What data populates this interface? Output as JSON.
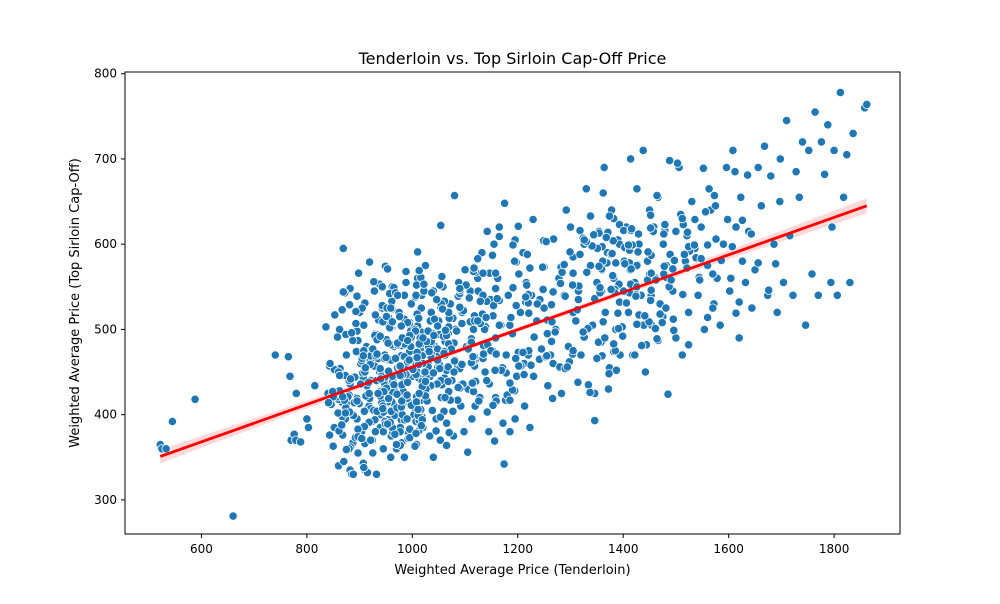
{
  "chart_data": {
    "type": "scatter",
    "title": "Tenderloin vs. Top Sirloin Cap-Off Price",
    "xlabel": "Weighted Average Price (Tenderloin)",
    "ylabel": "Weighted Average Price (Top Sirloin Cap-Off)",
    "xlim": [
      455,
      1925
    ],
    "ylim": [
      260,
      802
    ],
    "xticks": [
      600,
      800,
      1000,
      1200,
      1400,
      1600,
      1800
    ],
    "yticks": [
      300,
      400,
      500,
      600,
      700,
      800
    ],
    "grid": false,
    "legend": "none",
    "point_color": "#1f77b4",
    "regression": {
      "color": "#ff0000",
      "band_color": "#ff0000",
      "x_start": 522,
      "y_start": 351,
      "x_end": 1862,
      "y_end": 645,
      "band_halfwidth_start": 8,
      "band_halfwidth_mid": 3,
      "band_halfwidth_end": 9
    },
    "n_points": 1000,
    "points_note": "Scatter of ~1000 price pairs; dense cluster near x 850-1150, y 330-575; spread x 520-1860, y 280-778.",
    "points": [
      [
        522,
        365
      ],
      [
        525,
        360
      ],
      [
        533,
        360
      ],
      [
        545,
        392
      ],
      [
        588,
        418
      ],
      [
        660,
        281
      ],
      [
        740,
        470
      ],
      [
        765,
        468
      ],
      [
        768,
        445
      ],
      [
        770,
        370
      ],
      [
        776,
        377
      ],
      [
        779,
        370
      ],
      [
        780,
        425
      ],
      [
        788,
        368
      ],
      [
        800,
        395
      ],
      [
        803,
        385
      ],
      [
        815,
        434
      ],
      [
        836,
        503
      ],
      [
        840,
        425
      ],
      [
        843,
        376
      ],
      [
        860,
        340
      ],
      [
        862,
        500
      ],
      [
        866,
        415
      ],
      [
        868,
        376
      ],
      [
        870,
        345
      ],
      [
        875,
        470
      ],
      [
        880,
        437
      ],
      [
        882,
        335
      ],
      [
        885,
        330
      ],
      [
        888,
        330
      ],
      [
        893,
        420
      ],
      [
        895,
        395
      ],
      [
        897,
        355
      ],
      [
        900,
        520
      ],
      [
        902,
        460
      ],
      [
        904,
        380
      ],
      [
        907,
        343
      ],
      [
        910,
        335
      ],
      [
        913,
        480
      ],
      [
        915,
        332
      ],
      [
        918,
        410
      ],
      [
        920,
        370
      ],
      [
        922,
        440
      ],
      [
        925,
        355
      ],
      [
        928,
        545
      ],
      [
        930,
        495
      ],
      [
        932,
        330
      ],
      [
        935,
        400
      ],
      [
        938,
        450
      ],
      [
        940,
        385
      ],
      [
        943,
        525
      ],
      [
        945,
        360
      ],
      [
        948,
        470
      ],
      [
        950,
        415
      ],
      [
        953,
        390
      ],
      [
        955,
        505
      ],
      [
        958,
        440
      ],
      [
        960,
        375
      ],
      [
        962,
        550
      ],
      [
        965,
        480
      ],
      [
        968,
        410
      ],
      [
        970,
        360
      ],
      [
        972,
        455
      ],
      [
        975,
        520
      ],
      [
        978,
        395
      ],
      [
        980,
        435
      ],
      [
        982,
        490
      ],
      [
        985,
        350
      ],
      [
        988,
        555
      ],
      [
        990,
        470
      ],
      [
        993,
        415
      ],
      [
        995,
        380
      ],
      [
        998,
        530
      ],
      [
        1000,
        445
      ],
      [
        1003,
        400
      ],
      [
        1005,
        500
      ],
      [
        1008,
        365
      ],
      [
        1010,
        560
      ],
      [
        1012,
        470
      ],
      [
        1015,
        420
      ],
      [
        1018,
        540
      ],
      [
        1020,
        385
      ],
      [
        1022,
        490
      ],
      [
        1025,
        575
      ],
      [
        1028,
        430
      ],
      [
        1030,
        460
      ],
      [
        1033,
        375
      ],
      [
        1035,
        520
      ],
      [
        1038,
        405
      ],
      [
        1040,
        545
      ],
      [
        1043,
        480
      ],
      [
        1045,
        395
      ],
      [
        1048,
        455
      ],
      [
        1050,
        510
      ],
      [
        1053,
        370
      ],
      [
        1055,
        420
      ],
      [
        1058,
        550
      ],
      [
        1062,
        470
      ],
      [
        1065,
        390
      ],
      [
        1068,
        495
      ],
      [
        1072,
        530
      ],
      [
        1075,
        440
      ],
      [
        1078,
        375
      ],
      [
        1082,
        500
      ],
      [
        1085,
        460
      ],
      [
        1088,
        555
      ],
      [
        1092,
        410
      ],
      [
        1095,
        520
      ],
      [
        1098,
        380
      ],
      [
        1100,
        570
      ],
      [
        1103,
        480
      ],
      [
        1106,
        430
      ],
      [
        1110,
        545
      ],
      [
        1113,
        395
      ],
      [
        1116,
        500
      ],
      [
        1120,
        465
      ],
      [
        1124,
        560
      ],
      [
        1128,
        420
      ],
      [
        1132,
        590
      ],
      [
        1135,
        510
      ],
      [
        1138,
        450
      ],
      [
        1142,
        615
      ],
      [
        1145,
        380
      ],
      [
        1148,
        535
      ],
      [
        1152,
        475
      ],
      [
        1155,
        600
      ],
      [
        1158,
        420
      ],
      [
        1162,
        560
      ],
      [
        1165,
        620
      ],
      [
        1168,
        505
      ],
      [
        1172,
        390
      ],
      [
        1175,
        648
      ],
      [
        1178,
        470
      ],
      [
        1182,
        540
      ],
      [
        1185,
        380
      ],
      [
        1190,
        495
      ],
      [
        1195,
        605
      ],
      [
        1198,
        445
      ],
      [
        1202,
        565
      ],
      [
        1205,
        520
      ],
      [
        1210,
        590
      ],
      [
        1213,
        410
      ],
      [
        1216,
        555
      ],
      [
        1220,
        470
      ],
      [
        1223,
        385
      ],
      [
        1226,
        540
      ],
      [
        1230,
        445
      ],
      [
        1236,
        510
      ],
      [
        1242,
        535
      ],
      [
        1250,
        525
      ],
      [
        1256,
        495
      ],
      [
        1262,
        470
      ],
      [
        1268,
        545
      ],
      [
        1272,
        500
      ],
      [
        1278,
        560
      ],
      [
        1283,
        425
      ],
      [
        1288,
        540
      ],
      [
        1292,
        640
      ],
      [
        1296,
        480
      ],
      [
        1300,
        620
      ],
      [
        1305,
        585
      ],
      [
        1310,
        510
      ],
      [
        1315,
        545
      ],
      [
        1320,
        470
      ],
      [
        1326,
        600
      ],
      [
        1330,
        665
      ],
      [
        1334,
        435
      ],
      [
        1338,
        575
      ],
      [
        1342,
        505
      ],
      [
        1346,
        425
      ],
      [
        1350,
        555
      ],
      [
        1354,
        615
      ],
      [
        1358,
        485
      ],
      [
        1362,
        660
      ],
      [
        1366,
        520
      ],
      [
        1370,
        590
      ],
      [
        1374,
        455
      ],
      [
        1378,
        640
      ],
      [
        1382,
        560
      ],
      [
        1386,
        500
      ],
      [
        1390,
        605
      ],
      [
        1394,
        470
      ],
      [
        1398,
        545
      ],
      [
        1402,
        580
      ],
      [
        1406,
        620
      ],
      [
        1410,
        520
      ],
      [
        1414,
        700
      ],
      [
        1418,
        470
      ],
      [
        1422,
        555
      ],
      [
        1426,
        665
      ],
      [
        1430,
        600
      ],
      [
        1434,
        540
      ],
      [
        1438,
        710
      ],
      [
        1442,
        450
      ],
      [
        1446,
        580
      ],
      [
        1450,
        640
      ],
      [
        1454,
        505
      ],
      [
        1458,
        620
      ],
      [
        1462,
        560
      ],
      [
        1466,
        655
      ],
      [
        1470,
        530
      ],
      [
        1476,
        600
      ],
      [
        1482,
        575
      ],
      [
        1488,
        698
      ],
      [
        1494,
        545
      ],
      [
        1500,
        615
      ],
      [
        1506,
        690
      ],
      [
        1512,
        470
      ],
      [
        1518,
        580
      ],
      [
        1524,
        520
      ],
      [
        1530,
        650
      ],
      [
        1536,
        595
      ],
      [
        1542,
        540
      ],
      [
        1548,
        620
      ],
      [
        1554,
        500
      ],
      [
        1560,
        575
      ],
      [
        1566,
        640
      ],
      [
        1572,
        530
      ],
      [
        1578,
        560
      ],
      [
        1584,
        505
      ],
      [
        1590,
        600
      ],
      [
        1596,
        690
      ],
      [
        1602,
        545
      ],
      [
        1608,
        710
      ],
      [
        1614,
        620
      ],
      [
        1620,
        490
      ],
      [
        1626,
        580
      ],
      [
        1632,
        555
      ],
      [
        1638,
        615
      ],
      [
        1644,
        525
      ],
      [
        1650,
        570
      ],
      [
        1656,
        690
      ],
      [
        1662,
        645
      ],
      [
        1668,
        715
      ],
      [
        1674,
        540
      ],
      [
        1680,
        680
      ],
      [
        1686,
        600
      ],
      [
        1692,
        520
      ],
      [
        1698,
        700
      ],
      [
        1704,
        555
      ],
      [
        1710,
        745
      ],
      [
        1716,
        610
      ],
      [
        1722,
        540
      ],
      [
        1728,
        685
      ],
      [
        1734,
        655
      ],
      [
        1740,
        720
      ],
      [
        1746,
        505
      ],
      [
        1752,
        710
      ],
      [
        1758,
        565
      ],
      [
        1764,
        755
      ],
      [
        1770,
        540
      ],
      [
        1776,
        720
      ],
      [
        1782,
        682
      ],
      [
        1788,
        740
      ],
      [
        1794,
        555
      ],
      [
        1800,
        710
      ],
      [
        1806,
        540
      ],
      [
        1812,
        778
      ],
      [
        1818,
        655
      ],
      [
        1824,
        705
      ],
      [
        1830,
        555
      ],
      [
        1836,
        730
      ],
      [
        1858,
        760
      ],
      [
        1862,
        764
      ]
    ]
  }
}
